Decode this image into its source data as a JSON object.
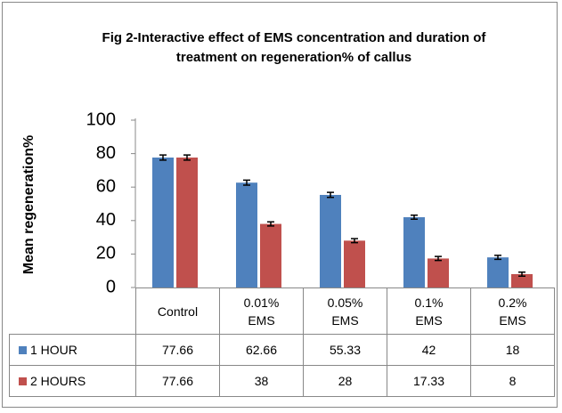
{
  "chart_data": {
    "type": "bar",
    "title": "Fig 2-Interactive effect of EMS concentration and duration of treatment on regeneration% of callus",
    "y_label": "Mean regeneration%",
    "categories": [
      "Control",
      "0.01% EMS",
      "0.05% EMS",
      "0.1% EMS",
      "0.2% EMS"
    ],
    "series": [
      {
        "name": "1 HOUR",
        "color": "#4f81bd",
        "values": [
          77.66,
          62.66,
          55.33,
          42,
          18
        ],
        "errors": [
          1.5,
          1.5,
          1.5,
          1.2,
          1.2
        ]
      },
      {
        "name": "2 HOURS",
        "color": "#c0504d",
        "values": [
          77.66,
          38,
          28,
          17.33,
          8
        ],
        "errors": [
          1.5,
          1.2,
          1.2,
          1.2,
          1.2
        ]
      }
    ],
    "ylim": [
      0,
      100
    ],
    "yticks": [
      0,
      20,
      40,
      60,
      80,
      100
    ],
    "grid": false,
    "data_table": true
  }
}
